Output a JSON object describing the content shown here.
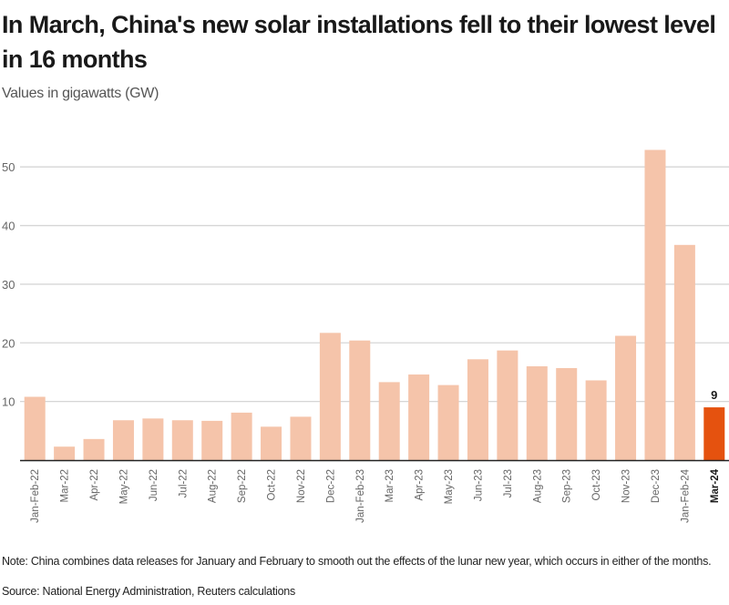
{
  "chart_data": {
    "type": "bar",
    "title": "In March, China's new solar installations fell to their lowest level in 16 months",
    "subtitle": "Values in gigawatts (GW)",
    "xlabel": "",
    "ylabel": "",
    "ylim": [
      0,
      55
    ],
    "yticks": [
      10,
      20,
      30,
      40,
      50
    ],
    "grid": true,
    "categories": [
      "Jan-Feb-22",
      "Mar-22",
      "Apr-22",
      "May-22",
      "Jun-22",
      "Jul-22",
      "Aug-22",
      "Sep-22",
      "Oct-22",
      "Nov-22",
      "Dec-22",
      "Jan-Feb-23",
      "Mar-23",
      "Apr-23",
      "May-23",
      "Jun-23",
      "Jul-23",
      "Aug-23",
      "Sep-23",
      "Oct-23",
      "Nov-23",
      "Dec-23",
      "Jan-Feb-24",
      "Mar-24"
    ],
    "values": [
      10.8,
      2.3,
      3.6,
      6.8,
      7.1,
      6.8,
      6.7,
      8.1,
      5.7,
      7.4,
      21.7,
      20.4,
      13.3,
      14.6,
      12.8,
      17.2,
      18.7,
      16.0,
      15.7,
      13.6,
      21.2,
      52.9,
      36.7,
      9.0
    ],
    "highlight_index": 23,
    "data_labels": [
      {
        "index": 23,
        "text": "9"
      }
    ],
    "colors": {
      "bar": "#f5c4aa",
      "highlight": "#e5520f",
      "grid": "#d6d6d6",
      "axis": "#222222"
    }
  },
  "title": "In March, China's new solar installations fell to their lowest level in 16 months",
  "subtitle": "Values in gigawatts (GW)",
  "note": "Note: China combines data releases for January and February to smooth out the effects of the lunar new year, which occurs in either of the months.",
  "source": "Source: National Energy Administration, Reuters calculations"
}
